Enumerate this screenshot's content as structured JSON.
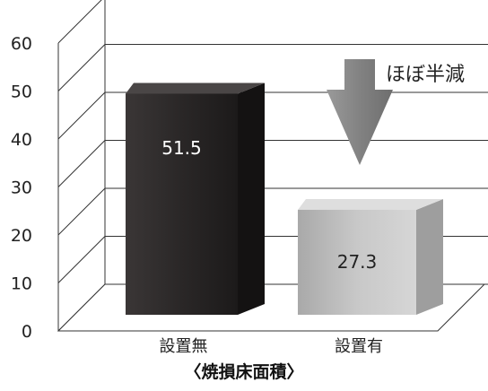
{
  "chart_data": {
    "type": "bar",
    "categories": [
      "設置無",
      "設置有"
    ],
    "series": [
      {
        "values": [
          51.5,
          27.3
        ]
      }
    ],
    "value_labels": [
      "51.5",
      "27.3"
    ],
    "xlabel": "〈焼損床面積〉",
    "ylabel": "",
    "ylim": [
      0,
      60
    ],
    "yticks": [
      "0",
      "10",
      "20",
      "30",
      "40",
      "50",
      "60"
    ],
    "grid": true,
    "annotation": "ほぼ半減",
    "colors": {
      "bar1": "#2a2727",
      "bar2": "#bdbdbd",
      "arrow": "#8a8a8a",
      "grid": "#333333",
      "label1": "#ffffff",
      "label2": "#222222"
    }
  }
}
